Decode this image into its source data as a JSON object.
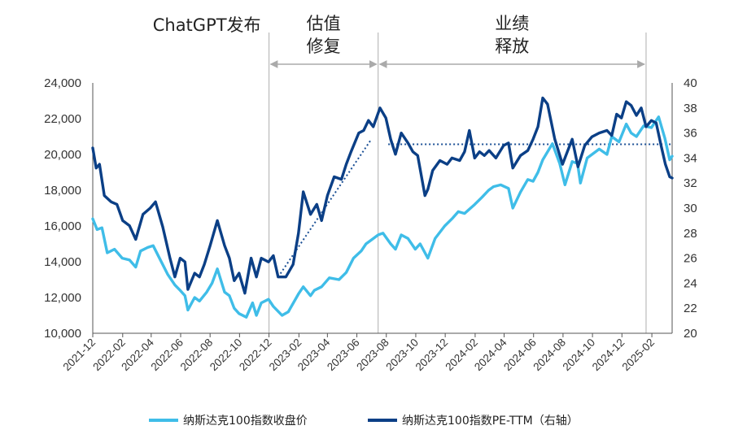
{
  "chart_data": {
    "type": "line",
    "title": "",
    "x_ticks": [
      "2021-12",
      "2022-02",
      "2022-04",
      "2022-06",
      "2022-08",
      "2022-10",
      "2022-12",
      "2023-02",
      "2023-04",
      "2023-06",
      "2023-08",
      "2023-10",
      "2023-12",
      "2024-02",
      "2024-04",
      "2024-06",
      "2024-08",
      "2024-10",
      "2024-12",
      "2025-02"
    ],
    "x_range": [
      "2021-12-01",
      "2025-03-15"
    ],
    "y_left": {
      "ticks": [
        "10,000",
        "12,000",
        "14,000",
        "16,000",
        "18,000",
        "20,000",
        "22,000",
        "24,000"
      ],
      "ylim": [
        10000,
        24000
      ]
    },
    "y_right": {
      "ticks": [
        "20",
        "22",
        "24",
        "26",
        "28",
        "30",
        "32",
        "34",
        "36",
        "38",
        "40"
      ],
      "ylim": [
        20,
        40
      ]
    },
    "colors": {
      "price": "#3fbde8",
      "pe": "#0b3f86",
      "vline": "#bbbbbb",
      "arrow": "#aaaaaa",
      "guide": "#1a4f95"
    },
    "series": [
      {
        "name": "纳斯达克100指数收盘价",
        "axis": "left",
        "points": [
          [
            "2021-12-01",
            16400
          ],
          [
            "2021-12-10",
            15800
          ],
          [
            "2021-12-20",
            15900
          ],
          [
            "2021-12-31",
            14500
          ],
          [
            "2022-01-15",
            14700
          ],
          [
            "2022-01-31",
            14200
          ],
          [
            "2022-02-15",
            14100
          ],
          [
            "2022-02-28",
            13700
          ],
          [
            "2022-03-10",
            14600
          ],
          [
            "2022-03-25",
            14800
          ],
          [
            "2022-04-05",
            14900
          ],
          [
            "2022-04-20",
            14100
          ],
          [
            "2022-05-05",
            13300
          ],
          [
            "2022-05-20",
            12700
          ],
          [
            "2022-05-31",
            12400
          ],
          [
            "2022-06-10",
            12100
          ],
          [
            "2022-06-16",
            11300
          ],
          [
            "2022-06-30",
            12000
          ],
          [
            "2022-07-10",
            11800
          ],
          [
            "2022-07-25",
            12300
          ],
          [
            "2022-08-05",
            12800
          ],
          [
            "2022-08-16",
            13600
          ],
          [
            "2022-08-31",
            12300
          ],
          [
            "2022-09-10",
            12100
          ],
          [
            "2022-09-20",
            11400
          ],
          [
            "2022-09-30",
            11100
          ],
          [
            "2022-10-15",
            10900
          ],
          [
            "2022-10-28",
            11700
          ],
          [
            "2022-11-05",
            11000
          ],
          [
            "2022-11-15",
            11700
          ],
          [
            "2022-11-30",
            11900
          ],
          [
            "2022-12-10",
            11500
          ],
          [
            "2022-12-28",
            11000
          ],
          [
            "2023-01-10",
            11200
          ],
          [
            "2023-01-31",
            12200
          ],
          [
            "2023-02-10",
            12600
          ],
          [
            "2023-02-25",
            12100
          ],
          [
            "2023-03-05",
            12400
          ],
          [
            "2023-03-20",
            12600
          ],
          [
            "2023-04-05",
            13100
          ],
          [
            "2023-04-25",
            13000
          ],
          [
            "2023-05-10",
            13400
          ],
          [
            "2023-05-25",
            14200
          ],
          [
            "2023-06-10",
            14600
          ],
          [
            "2023-06-20",
            15000
          ],
          [
            "2023-06-30",
            15200
          ],
          [
            "2023-07-15",
            15500
          ],
          [
            "2023-07-25",
            15600
          ],
          [
            "2023-08-10",
            15000
          ],
          [
            "2023-08-20",
            14700
          ],
          [
            "2023-09-01",
            15500
          ],
          [
            "2023-09-15",
            15300
          ],
          [
            "2023-09-30",
            14700
          ],
          [
            "2023-10-10",
            15000
          ],
          [
            "2023-10-26",
            14200
          ],
          [
            "2023-11-10",
            15300
          ],
          [
            "2023-11-30",
            16000
          ],
          [
            "2023-12-15",
            16400
          ],
          [
            "2023-12-28",
            16800
          ],
          [
            "2024-01-10",
            16700
          ],
          [
            "2024-01-31",
            17200
          ],
          [
            "2024-02-15",
            17600
          ],
          [
            "2024-02-29",
            18000
          ],
          [
            "2024-03-10",
            18200
          ],
          [
            "2024-03-25",
            18300
          ],
          [
            "2024-04-10",
            18100
          ],
          [
            "2024-04-19",
            17000
          ],
          [
            "2024-05-05",
            17900
          ],
          [
            "2024-05-20",
            18600
          ],
          [
            "2024-05-31",
            18500
          ],
          [
            "2024-06-10",
            19000
          ],
          [
            "2024-06-20",
            19700
          ],
          [
            "2024-07-10",
            20600
          ],
          [
            "2024-07-25",
            19500
          ],
          [
            "2024-08-05",
            18300
          ],
          [
            "2024-08-20",
            19600
          ],
          [
            "2024-08-31",
            19500
          ],
          [
            "2024-09-06",
            18400
          ],
          [
            "2024-09-20",
            19800
          ],
          [
            "2024-09-30",
            20000
          ],
          [
            "2024-10-15",
            20300
          ],
          [
            "2024-10-31",
            20000
          ],
          [
            "2024-11-10",
            21000
          ],
          [
            "2024-11-25",
            20700
          ],
          [
            "2024-12-10",
            21700
          ],
          [
            "2024-12-20",
            21200
          ],
          [
            "2024-12-31",
            21000
          ],
          [
            "2025-01-15",
            21600
          ],
          [
            "2025-01-31",
            21500
          ],
          [
            "2025-02-15",
            22100
          ],
          [
            "2025-02-28",
            20900
          ],
          [
            "2025-03-10",
            19700
          ],
          [
            "2025-03-15",
            19900
          ]
        ]
      },
      {
        "name": "纳斯达克100指数PE-TTM（右轴）",
        "axis": "right",
        "points": [
          [
            "2021-12-01",
            34.8
          ],
          [
            "2021-12-08",
            33.2
          ],
          [
            "2021-12-15",
            33.5
          ],
          [
            "2021-12-25",
            31.0
          ],
          [
            "2022-01-08",
            30.5
          ],
          [
            "2022-01-20",
            30.3
          ],
          [
            "2022-02-01",
            29.0
          ],
          [
            "2022-02-15",
            28.6
          ],
          [
            "2022-02-28",
            27.5
          ],
          [
            "2022-03-15",
            29.5
          ],
          [
            "2022-03-30",
            30.0
          ],
          [
            "2022-04-10",
            30.5
          ],
          [
            "2022-04-25",
            28.5
          ],
          [
            "2022-05-10",
            26.0
          ],
          [
            "2022-05-20",
            24.5
          ],
          [
            "2022-05-31",
            26.0
          ],
          [
            "2022-06-10",
            25.7
          ],
          [
            "2022-06-16",
            23.5
          ],
          [
            "2022-06-30",
            24.8
          ],
          [
            "2022-07-10",
            24.5
          ],
          [
            "2022-07-20",
            25.5
          ],
          [
            "2022-08-01",
            27.0
          ],
          [
            "2022-08-16",
            29.0
          ],
          [
            "2022-08-31",
            27.0
          ],
          [
            "2022-09-10",
            26.0
          ],
          [
            "2022-09-20",
            24.2
          ],
          [
            "2022-09-30",
            24.8
          ],
          [
            "2022-10-12",
            23.2
          ],
          [
            "2022-10-25",
            26.0
          ],
          [
            "2022-11-05",
            24.5
          ],
          [
            "2022-11-15",
            26.0
          ],
          [
            "2022-11-30",
            25.7
          ],
          [
            "2022-12-10",
            26.2
          ],
          [
            "2022-12-20",
            24.5
          ],
          [
            "2023-01-05",
            24.5
          ],
          [
            "2023-01-20",
            25.5
          ],
          [
            "2023-01-31",
            28.0
          ],
          [
            "2023-02-10",
            31.3
          ],
          [
            "2023-02-25",
            29.5
          ],
          [
            "2023-03-10",
            30.3
          ],
          [
            "2023-03-20",
            29.0
          ],
          [
            "2023-04-01",
            31.0
          ],
          [
            "2023-04-15",
            32.5
          ],
          [
            "2023-04-30",
            32.3
          ],
          [
            "2023-05-10",
            33.5
          ],
          [
            "2023-05-20",
            34.5
          ],
          [
            "2023-06-05",
            36.0
          ],
          [
            "2023-06-15",
            36.2
          ],
          [
            "2023-06-25",
            37.0
          ],
          [
            "2023-07-05",
            36.5
          ],
          [
            "2023-07-19",
            38.0
          ],
          [
            "2023-07-31",
            37.2
          ],
          [
            "2023-08-10",
            35.5
          ],
          [
            "2023-08-20",
            34.3
          ],
          [
            "2023-09-01",
            36.0
          ],
          [
            "2023-09-15",
            35.2
          ],
          [
            "2023-09-25",
            34.5
          ],
          [
            "2023-10-05",
            34.2
          ],
          [
            "2023-10-20",
            31.0
          ],
          [
            "2023-10-26",
            31.5
          ],
          [
            "2023-11-05",
            33.0
          ],
          [
            "2023-11-20",
            33.8
          ],
          [
            "2023-12-05",
            33.5
          ],
          [
            "2023-12-15",
            34.0
          ],
          [
            "2023-12-31",
            33.8
          ],
          [
            "2024-01-10",
            34.5
          ],
          [
            "2024-01-20",
            36.2
          ],
          [
            "2024-01-31",
            34.0
          ],
          [
            "2024-02-10",
            34.5
          ],
          [
            "2024-02-20",
            34.2
          ],
          [
            "2024-03-01",
            34.6
          ],
          [
            "2024-03-15",
            34.0
          ],
          [
            "2024-03-31",
            35.0
          ],
          [
            "2024-04-10",
            35.2
          ],
          [
            "2024-04-19",
            33.2
          ],
          [
            "2024-05-05",
            34.2
          ],
          [
            "2024-05-20",
            34.6
          ],
          [
            "2024-05-31",
            35.5
          ],
          [
            "2024-06-10",
            36.5
          ],
          [
            "2024-06-20",
            38.8
          ],
          [
            "2024-06-30",
            38.3
          ],
          [
            "2024-07-15",
            35.5
          ],
          [
            "2024-07-31",
            33.5
          ],
          [
            "2024-08-10",
            34.5
          ],
          [
            "2024-08-20",
            35.5
          ],
          [
            "2024-09-01",
            33.3
          ],
          [
            "2024-09-15",
            35.0
          ],
          [
            "2024-09-30",
            35.7
          ],
          [
            "2024-10-15",
            36.0
          ],
          [
            "2024-10-31",
            36.2
          ],
          [
            "2024-11-10",
            35.8
          ],
          [
            "2024-11-20",
            37.5
          ],
          [
            "2024-11-30",
            37.2
          ],
          [
            "2024-12-10",
            38.5
          ],
          [
            "2024-12-20",
            38.2
          ],
          [
            "2024-12-31",
            37.4
          ],
          [
            "2025-01-10",
            38.0
          ],
          [
            "2025-01-20",
            36.5
          ],
          [
            "2025-01-31",
            37.0
          ],
          [
            "2025-02-10",
            36.8
          ],
          [
            "2025-02-20",
            35.0
          ],
          [
            "2025-03-01",
            33.5
          ],
          [
            "2025-03-10",
            32.5
          ],
          [
            "2025-03-15",
            32.4
          ]
        ]
      }
    ],
    "guides": [
      {
        "style": "dotted",
        "axis": "right",
        "from": [
          "2022-12-20",
          24.5
        ],
        "to": [
          "2023-07-01",
          35.5
        ]
      },
      {
        "style": "dotted",
        "axis": "right",
        "from": [
          "2023-08-05",
          35.1
        ],
        "to": [
          "2025-03-15",
          35.1
        ]
      }
    ],
    "vlines": [
      "2022-12-01",
      "2023-07-15",
      "2025-01-20"
    ],
    "annotations": [
      {
        "text": "ChatGPT发布",
        "lines": [
          "ChatGPT发布"
        ],
        "at": "2022-12-01"
      },
      {
        "text": "估值修复",
        "lines": [
          "估值",
          "修复"
        ],
        "from": "2022-12-01",
        "to": "2023-07-15"
      },
      {
        "text": "业绩释放",
        "lines": [
          "业绩",
          "释放"
        ],
        "from": "2023-07-15",
        "to": "2025-01-20"
      }
    ],
    "legend": {
      "placement": "bottom"
    }
  }
}
